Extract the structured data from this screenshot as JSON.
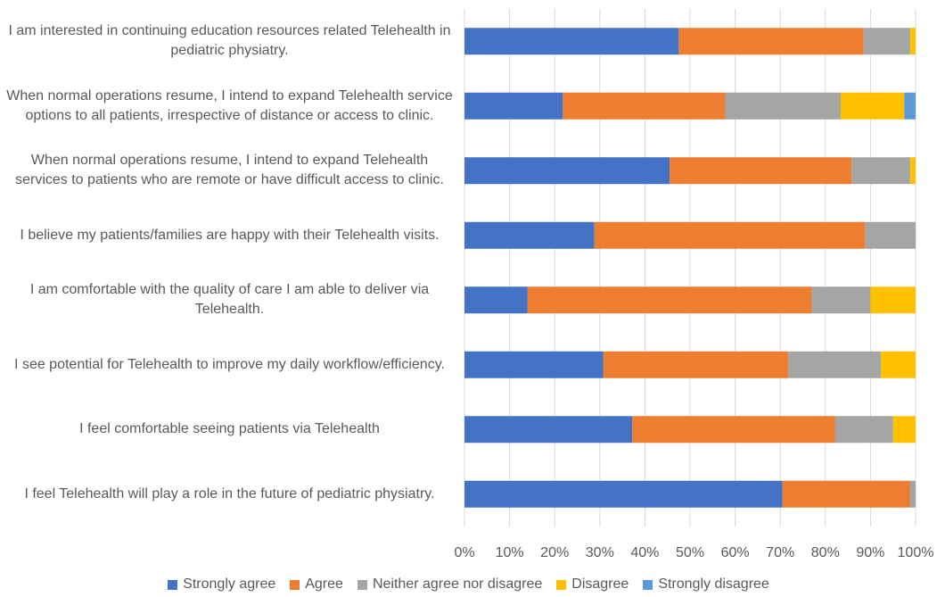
{
  "chart_data": {
    "type": "bar",
    "orientation": "horizontal",
    "stacked": true,
    "percent_stacked": true,
    "categories": [
      "I am interested in continuing education resources related Telehealth in pediatric physiatry.",
      "When normal operations resume, I intend to expand Telehealth service options to all patients, irrespective of distance or access to clinic.",
      "When normal operations resume, I intend to expand Telehealth services to patients who are remote or have difficult access to clinic.",
      "I believe my patients/families are happy with their Telehealth visits.",
      "I am comfortable with the quality of care I am able to deliver via Telehealth.",
      "I see potential for Telehealth to improve my daily workflow/efficiency.",
      "I feel comfortable seeing patients via Telehealth",
      "I feel Telehealth will play a role in the future of pediatric physiatry."
    ],
    "series": [
      {
        "name": "Strongly agree",
        "color": "#4472C4",
        "values": [
          47.5,
          21.8,
          45.5,
          28.8,
          14.0,
          30.8,
          37.2,
          70.5
        ]
      },
      {
        "name": "Agree",
        "color": "#ED7D31",
        "values": [
          41.0,
          36.0,
          40.3,
          60.0,
          63.0,
          41.0,
          45.0,
          28.3
        ]
      },
      {
        "name": "Neither agree nor disagree",
        "color": "#A5A5A5",
        "values": [
          10.3,
          25.6,
          13.0,
          11.2,
          13.0,
          20.5,
          12.8,
          1.2
        ]
      },
      {
        "name": "Disagree",
        "color": "#FFC000",
        "values": [
          1.2,
          14.1,
          1.2,
          0,
          10.0,
          7.7,
          5.0,
          0
        ]
      },
      {
        "name": "Strongly disagree",
        "color": "#5B9BD5",
        "values": [
          0,
          2.5,
          0,
          0,
          0,
          0,
          0,
          0
        ]
      }
    ],
    "xlim": [
      0,
      100
    ],
    "xticks": [
      "0%",
      "10%",
      "20%",
      "30%",
      "40%",
      "50%",
      "60%",
      "70%",
      "80%",
      "90%",
      "100%"
    ],
    "grid": true,
    "legend_position": "bottom"
  }
}
